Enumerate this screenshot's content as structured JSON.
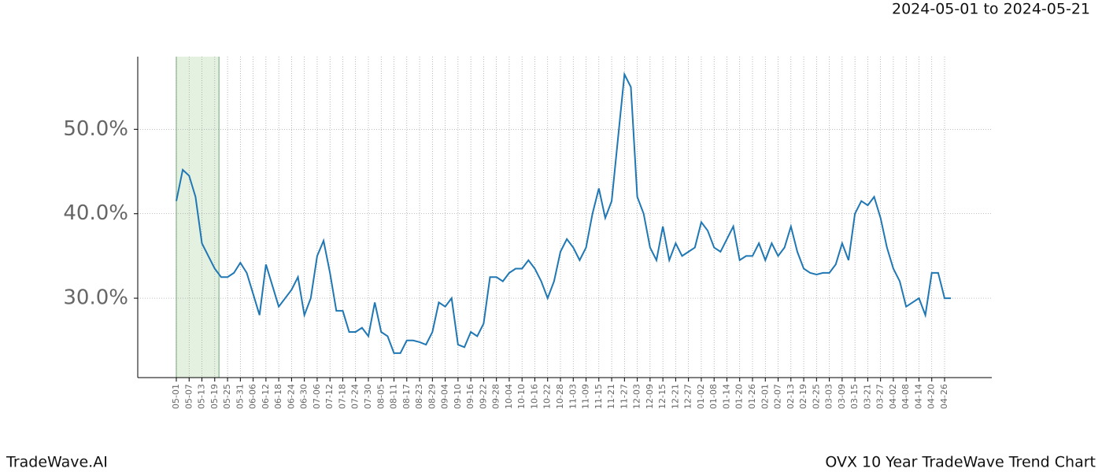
{
  "chart_data": {
    "type": "line",
    "title": "2024-05-01 to 2024-05-21",
    "footer_left": "TradeWave.AI",
    "footer_right": "OVX 10 Year TradeWave Trend Chart",
    "categories": [
      "05-01",
      null,
      "05-07",
      null,
      "05-13",
      null,
      "05-19",
      null,
      "05-25",
      null,
      "05-31",
      null,
      "06-06",
      null,
      "06-12",
      null,
      "06-18",
      null,
      "06-24",
      null,
      "06-30",
      null,
      "07-06",
      null,
      "07-12",
      null,
      "07-18",
      null,
      "07-24",
      null,
      "07-30",
      null,
      "08-05",
      null,
      "08-11",
      null,
      "08-17",
      null,
      "08-23",
      null,
      "08-29",
      null,
      "09-04",
      null,
      "09-10",
      null,
      "09-16",
      null,
      "09-22",
      null,
      "09-28",
      null,
      "10-04",
      null,
      "10-10",
      null,
      "10-16",
      null,
      "10-22",
      null,
      "10-28",
      null,
      "11-03",
      null,
      "11-09",
      null,
      "11-15",
      null,
      "11-21",
      null,
      "11-27",
      null,
      "12-03",
      null,
      "12-09",
      null,
      "12-15",
      null,
      "12-21",
      null,
      "12-27",
      null,
      "01-02",
      null,
      "01-08",
      null,
      "01-14",
      null,
      "01-20",
      null,
      "01-26",
      null,
      "02-01",
      null,
      "02-07",
      null,
      "02-13",
      null,
      "02-19",
      null,
      "02-25",
      null,
      "03-03",
      null,
      "03-09",
      null,
      "03-15",
      null,
      "03-21",
      null,
      "03-27",
      null,
      "04-02",
      null,
      "04-08",
      null,
      "04-14",
      null,
      "04-20",
      null,
      "04-26",
      null
    ],
    "series": [
      {
        "color": "#1f77b4",
        "values": [
          41.5,
          45.2,
          44.5,
          42,
          36.5,
          35,
          33.5,
          32.5,
          32.5,
          33,
          34.2,
          33,
          30.5,
          28,
          34,
          31.5,
          29,
          30,
          31,
          32.5,
          28,
          30,
          35,
          36.8,
          33,
          28.5,
          28.5,
          26,
          26,
          26.5,
          25.5,
          29.5,
          26,
          25.5,
          23.5,
          23.5,
          25,
          25,
          24.8,
          24.5,
          26,
          29.5,
          29,
          30,
          24.5,
          24.2,
          26,
          25.5,
          27,
          32.5,
          32.5,
          32,
          33,
          33.5,
          33.5,
          34.5,
          33.5,
          32,
          30,
          32,
          35.5,
          37,
          36,
          34.5,
          36,
          40,
          43,
          39.5,
          41.5,
          49,
          56.5,
          55,
          42,
          40,
          36,
          34.5,
          38.5,
          34.5,
          36.5,
          35,
          35.5,
          36,
          39,
          38,
          36,
          35.5,
          37,
          38.5,
          34.5,
          35,
          35,
          36.5,
          34.5,
          36.5,
          35,
          36,
          38.5,
          35.5,
          33.5,
          33,
          32.8,
          33,
          33,
          34,
          36.5,
          34.5,
          40,
          41.5,
          41,
          42,
          39.5,
          36,
          33.5,
          32,
          29,
          29.5,
          30,
          28,
          33,
          33,
          30,
          30
        ]
      }
    ],
    "highlight": [
      "05-01",
      "05-21"
    ],
    "highlight_color": "#d9ead3",
    "ylim": [
      20.6,
      58.6
    ],
    "yticks": [
      {
        "value": 30,
        "label": "30.0%"
      },
      {
        "value": 40,
        "label": "40.0%"
      },
      {
        "value": 50,
        "label": "50.0%"
      }
    ],
    "grid": true
  }
}
